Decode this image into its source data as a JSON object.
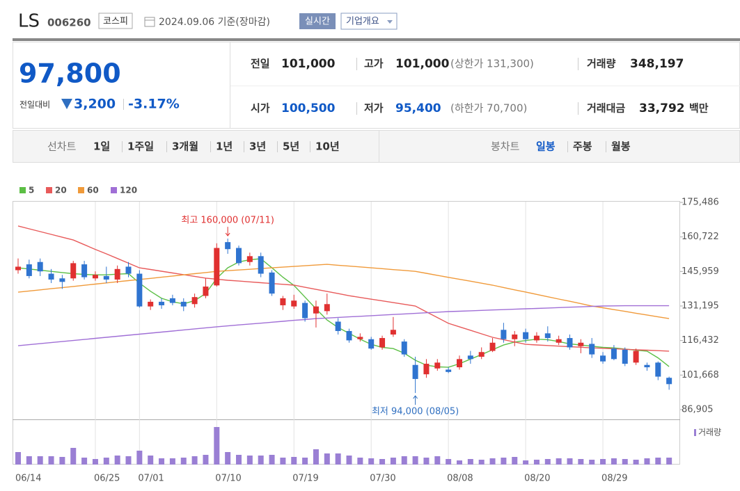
{
  "header": {
    "name": "LS",
    "code": "006260",
    "market": "코스피",
    "date": "2024.09.06 기준(장마감)",
    "realtime": "실시간",
    "overview": "기업개요"
  },
  "quote": {
    "price": "97,800",
    "change_label": "전일대비",
    "change": "3,200",
    "change_pct": "-3.17%",
    "items": [
      {
        "label": "전일",
        "value": "101,000"
      },
      {
        "label": "고가",
        "value": "101,000",
        "extra": "(상한가 131,300)"
      },
      {
        "label": "거래량",
        "value": "348,197"
      },
      {
        "label": "시가",
        "value": "100,500"
      },
      {
        "label": "저가",
        "value": "95,400",
        "extra": "(하한가 70,700)"
      },
      {
        "label": "거래대금",
        "value": "33,792",
        "extra": "백만"
      }
    ]
  },
  "toolbar": {
    "line_label": "선차트",
    "periods": [
      "1일",
      "1주일",
      "3개월",
      "1년",
      "3년",
      "5년",
      "10년"
    ],
    "candle_label": "봉차트",
    "candle_periods": [
      "일봉",
      "주봉",
      "월봉"
    ]
  },
  "chart_data": {
    "type": "candlestick",
    "up_color": "#e03030",
    "down_color": "#2f74d0",
    "categories": [
      "06/14",
      "06/17",
      "06/18",
      "06/19",
      "06/20",
      "06/21",
      "06/24",
      "06/25",
      "06/26",
      "06/27",
      "06/28",
      "07/01",
      "07/02",
      "07/03",
      "07/04",
      "07/05",
      "07/08",
      "07/09",
      "07/10",
      "07/11",
      "07/12",
      "07/15",
      "07/16",
      "07/17",
      "07/18",
      "07/19",
      "07/22",
      "07/23",
      "07/24",
      "07/25",
      "07/26",
      "07/29",
      "07/30",
      "07/31",
      "08/01",
      "08/02",
      "08/05",
      "08/06",
      "08/07",
      "08/08",
      "08/09",
      "08/12",
      "08/13",
      "08/14",
      "08/16",
      "08/19",
      "08/20",
      "08/21",
      "08/22",
      "08/23",
      "08/26",
      "08/27",
      "08/28",
      "08/29",
      "08/30",
      "09/02",
      "09/03",
      "09/04",
      "09/05",
      "09/06"
    ],
    "open": [
      146500,
      149000,
      150000,
      145000,
      143000,
      143000,
      149000,
      143000,
      144000,
      142500,
      148000,
      145000,
      131000,
      133000,
      134500,
      133000,
      132000,
      135500,
      140000,
      158500,
      156000,
      150000,
      152500,
      145500,
      131500,
      131000,
      132500,
      128000,
      129000,
      124500,
      120500,
      117000,
      117000,
      113500,
      119000,
      116000,
      106000,
      102000,
      104500,
      104000,
      105000,
      110000,
      109500,
      112000,
      121000,
      117000,
      120000,
      116500,
      119500,
      115500,
      117500,
      114000,
      115000,
      110000,
      113000,
      112500,
      107000,
      106000,
      107000,
      100500
    ],
    "high": [
      151500,
      151000,
      151500,
      147000,
      144500,
      150500,
      150500,
      146000,
      148000,
      148500,
      150000,
      146500,
      134000,
      134500,
      136000,
      134500,
      136500,
      143000,
      158000,
      160000,
      157000,
      154000,
      154000,
      146500,
      135500,
      136000,
      133500,
      133500,
      136500,
      126000,
      121500,
      119500,
      118000,
      118500,
      126500,
      117000,
      109500,
      108500,
      108500,
      105000,
      110000,
      112000,
      113500,
      117500,
      124000,
      120500,
      121500,
      120000,
      122500,
      118500,
      119000,
      117000,
      117500,
      111500,
      114500,
      113500,
      113000,
      107000,
      107500,
      101000
    ],
    "low": [
      145000,
      143000,
      144000,
      141000,
      138500,
      142000,
      142500,
      142000,
      141000,
      141000,
      143500,
      130500,
      129500,
      130000,
      131500,
      129000,
      130500,
      134500,
      139500,
      153500,
      148500,
      148500,
      143500,
      135500,
      129500,
      130000,
      124500,
      122000,
      127500,
      119000,
      115500,
      116000,
      112500,
      112500,
      118000,
      109500,
      94000,
      100500,
      103500,
      102500,
      104000,
      106500,
      108500,
      111500,
      115500,
      114000,
      115500,
      115500,
      116000,
      114500,
      112500,
      111000,
      109000,
      106500,
      108000,
      105500,
      106000,
      103500,
      99500,
      95400
    ],
    "close": [
      148000,
      144000,
      146000,
      142500,
      141500,
      149500,
      143500,
      144500,
      142500,
      147000,
      145000,
      131000,
      133000,
      131500,
      132500,
      131000,
      135000,
      139500,
      156000,
      155500,
      149500,
      152500,
      145000,
      136500,
      134500,
      133500,
      126000,
      131000,
      132000,
      120500,
      116500,
      118000,
      113000,
      117500,
      121000,
      110500,
      100000,
      106500,
      107000,
      103000,
      108500,
      108500,
      111500,
      115500,
      117000,
      119000,
      117000,
      118500,
      117500,
      117000,
      113500,
      115500,
      110500,
      107500,
      108500,
      106500,
      112000,
      105000,
      101000,
      97800
    ],
    "series": [
      {
        "name": "5",
        "color": "#5cbf45",
        "values": [
          147500,
          147000,
          146500,
          146000,
          145500,
          145000,
          144700,
          144500,
          144500,
          144800,
          145000,
          141000,
          137500,
          134500,
          133000,
          132100,
          133500,
          136500,
          143000,
          147500,
          150000,
          151000,
          151400,
          147500,
          143500,
          140000,
          135000,
          130000,
          125200,
          122000,
          119500,
          117000,
          114800,
          113500,
          113000,
          111000,
          108000,
          105900,
          105200,
          105000,
          106500,
          108500,
          110400,
          112500,
          114500,
          115800,
          116400,
          117000,
          116800,
          116000,
          115000,
          114500,
          114000,
          113500,
          113300,
          112800,
          112300,
          111900,
          109000,
          105300
        ]
      },
      {
        "name": "20",
        "color": "#e85a5a",
        "values": [
          165400,
          164200,
          163000,
          161800,
          160600,
          159400,
          157400,
          155400,
          153500,
          151500,
          149500,
          147500,
          146800,
          146050,
          145300,
          144600,
          143850,
          143100,
          142650,
          142200,
          141850,
          141500,
          141150,
          140800,
          140450,
          140100,
          139200,
          138300,
          137400,
          136500,
          135600,
          134850,
          134100,
          133400,
          132650,
          131900,
          131200,
          128700,
          126250,
          123800,
          122300,
          120800,
          119300,
          117800,
          116800,
          115800,
          114800,
          114550,
          114300,
          114050,
          113800,
          113550,
          113300,
          113100,
          112900,
          112700,
          112500,
          112300,
          112100,
          111900
        ]
      },
      {
        "name": "60",
        "color": "#f09a3a",
        "values": [
          137100,
          137600,
          138100,
          138600,
          139050,
          139550,
          140050,
          140550,
          141050,
          141550,
          142050,
          142550,
          143000,
          143500,
          144000,
          144500,
          145000,
          145500,
          146000,
          146300,
          146600,
          146900,
          147200,
          147500,
          147800,
          148100,
          148400,
          148700,
          149000,
          148600,
          148250,
          147900,
          147500,
          147150,
          146750,
          146400,
          146000,
          145150,
          144300,
          143450,
          142600,
          141800,
          140950,
          140100,
          139100,
          138100,
          137150,
          136150,
          135150,
          134150,
          133200,
          132200,
          131200,
          130450,
          129650,
          128900,
          128100,
          127350,
          126550,
          125800
        ]
      },
      {
        "name": "120",
        "color": "#a06fd6",
        "values": [
          114200,
          114650,
          115100,
          115550,
          116000,
          116450,
          116900,
          117350,
          117800,
          118250,
          118700,
          119150,
          119600,
          120050,
          120500,
          120950,
          121400,
          121850,
          122300,
          122700,
          123100,
          123500,
          123850,
          124250,
          124650,
          125050,
          125400,
          125800,
          126050,
          126300,
          126550,
          126800,
          127050,
          127300,
          127550,
          127800,
          128050,
          128300,
          128550,
          128800,
          128970,
          129140,
          129310,
          129480,
          129650,
          129820,
          129990,
          130160,
          130330,
          130500,
          130670,
          130840,
          131010,
          131200,
          131250,
          131300,
          131300,
          131300,
          131300,
          131300
        ]
      }
    ],
    "volume": {
      "name": "거래량",
      "color": "#9a7fd4",
      "ylim": [
        0,
        60
      ],
      "values": [
        18,
        12,
        12,
        12,
        11,
        24,
        10,
        8,
        10,
        13,
        12,
        20,
        13,
        9,
        9,
        10,
        12,
        14,
        54,
        18,
        14,
        13,
        13,
        14,
        10,
        11,
        10,
        22,
        16,
        16,
        13,
        10,
        9,
        8,
        10,
        12,
        12,
        10,
        12,
        8,
        6,
        8,
        7,
        9,
        10,
        11,
        6,
        7,
        8,
        9,
        9,
        8,
        7,
        8,
        9,
        8,
        7,
        9,
        10,
        10
      ]
    },
    "ylim": [
      82730,
      175486
    ],
    "yticks": [
      {
        "value": 175486,
        "label": "175,486"
      },
      {
        "value": 160722,
        "label": "160,722"
      },
      {
        "value": 145959,
        "label": "145,959"
      },
      {
        "value": 131195,
        "label": "131,195"
      },
      {
        "value": 116432,
        "label": "116,432"
      },
      {
        "value": 101668,
        "label": "101,668"
      },
      {
        "value": 86905,
        "label": "86,905"
      }
    ],
    "xticks": [
      "06/14",
      "06/25",
      "07/01",
      "07/10",
      "07/19",
      "07/30",
      "08/08",
      "08/20",
      "08/29"
    ],
    "annotations": [
      {
        "text": "최고 160,000 (07/11)",
        "color": "#e03030"
      },
      {
        "text": "최저 94,000 (08/05)",
        "color": "#2f6fc0"
      }
    ]
  }
}
